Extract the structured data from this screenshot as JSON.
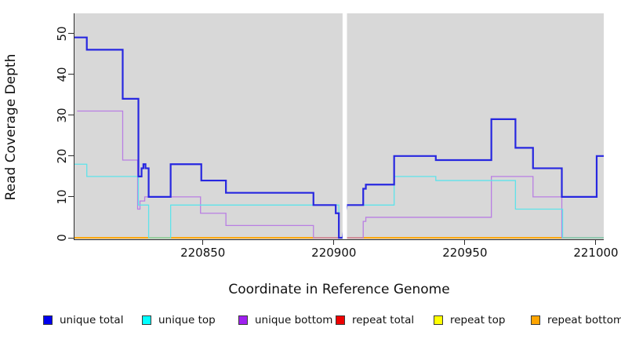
{
  "figure": {
    "xlabel": "Coordinate in Reference Genome",
    "ylabel": "Read Coverage Depth"
  },
  "legend": [
    {
      "label": "unique total",
      "color": "#0000EE"
    },
    {
      "label": "unique top",
      "color": "#00FFFF"
    },
    {
      "label": "unique bottom",
      "color": "#A020F0"
    },
    {
      "label": "repeat total",
      "color": "#EE0000"
    },
    {
      "label": "repeat top",
      "color": "#FFFF00"
    },
    {
      "label": "repeat bottom",
      "color": "#FFA500"
    }
  ],
  "chart_data": {
    "type": "line",
    "subtype": "step",
    "title": "",
    "xlabel": "Coordinate in Reference Genome",
    "ylabel": "Read Coverage Depth",
    "xlim": [
      220801,
      221003
    ],
    "ylim": [
      0,
      55
    ],
    "x_ticks": [
      220850,
      220900,
      220950,
      221000
    ],
    "y_ticks": [
      0,
      10,
      20,
      30,
      40,
      50
    ],
    "grid": false,
    "plot_background": "#D8D8D8",
    "gap_region": {
      "x_start": 220903.4,
      "x_end": 220904.9,
      "description": "white vertical band with no data"
    },
    "series": [
      {
        "name": "repeat total",
        "color": "#DD0000",
        "line_width": 1.3,
        "segments": [
          [
            220801,
            221003,
            0
          ]
        ]
      },
      {
        "name": "repeat top",
        "color": "#FFFF00",
        "line_width": 1.3,
        "segments": [
          [
            220801,
            221003,
            0
          ]
        ]
      },
      {
        "name": "repeat bottom",
        "color": "#FFA500",
        "line_width": 1.8,
        "segments": [
          [
            220801,
            221003,
            0
          ]
        ]
      },
      {
        "name": "unique bottom",
        "color": "#B97EE3",
        "line_width": 1.3,
        "segments": [
          [
            220802,
            220819.4,
            31
          ],
          [
            220819.4,
            220825.1,
            19
          ],
          [
            220825.1,
            220826,
            7
          ],
          [
            220826,
            220827.8,
            9
          ],
          [
            220827.8,
            220849.1,
            10
          ],
          [
            220849.1,
            220858.8,
            6
          ],
          [
            220858.8,
            220892.2,
            3
          ],
          [
            220892.2,
            220903.4,
            0
          ],
          [
            220904.9,
            220911.2,
            0
          ],
          [
            220911.2,
            220912.2,
            4
          ],
          [
            220912.2,
            220960.1,
            5
          ],
          [
            220960.1,
            220976,
            15
          ],
          [
            220976,
            220987,
            10
          ],
          [
            220987,
            221003,
            0
          ]
        ]
      },
      {
        "name": "unique top",
        "color": "#5EE3EA",
        "line_width": 1.3,
        "segments": [
          [
            220801,
            220805.7,
            18
          ],
          [
            220805.7,
            220825.4,
            15
          ],
          [
            220825.4,
            220829.3,
            8
          ],
          [
            220829.3,
            220837.7,
            0
          ],
          [
            220837.7,
            220901.9,
            8
          ],
          [
            220901.9,
            220903.4,
            0
          ],
          [
            220904.9,
            220923,
            8
          ],
          [
            220923,
            220938.9,
            15
          ],
          [
            220938.9,
            220969.3,
            14
          ],
          [
            220969.3,
            220987.3,
            7
          ],
          [
            220987.3,
            221003,
            0
          ]
        ]
      },
      {
        "name": "unique total",
        "color": "#2727E0",
        "line_width": 2.2,
        "segments": [
          [
            220801,
            220805.7,
            49
          ],
          [
            220805.7,
            220819.4,
            46
          ],
          [
            220819.4,
            220825.4,
            34
          ],
          [
            220825.4,
            220826.6,
            15
          ],
          [
            220826.6,
            220827.3,
            17
          ],
          [
            220827.3,
            220828.1,
            18
          ],
          [
            220828.1,
            220829.3,
            17
          ],
          [
            220829.3,
            220837.7,
            10
          ],
          [
            220837.7,
            220849.4,
            18
          ],
          [
            220849.4,
            220858.8,
            14
          ],
          [
            220858.8,
            220892.2,
            11
          ],
          [
            220892.2,
            220900.7,
            8
          ],
          [
            220900.7,
            220901.9,
            6
          ],
          [
            220901.9,
            220903.4,
            0
          ],
          [
            220904.9,
            220911.2,
            8
          ],
          [
            220911.2,
            220912.2,
            12
          ],
          [
            220912.2,
            220923,
            13
          ],
          [
            220923,
            220938.9,
            20
          ],
          [
            220938.9,
            220960.1,
            19
          ],
          [
            220960.1,
            220969.3,
            29
          ],
          [
            220969.3,
            220976,
            22
          ],
          [
            220976,
            220987,
            17
          ],
          [
            220987,
            221000.3,
            10
          ],
          [
            221000.3,
            221003,
            20
          ]
        ]
      }
    ]
  }
}
